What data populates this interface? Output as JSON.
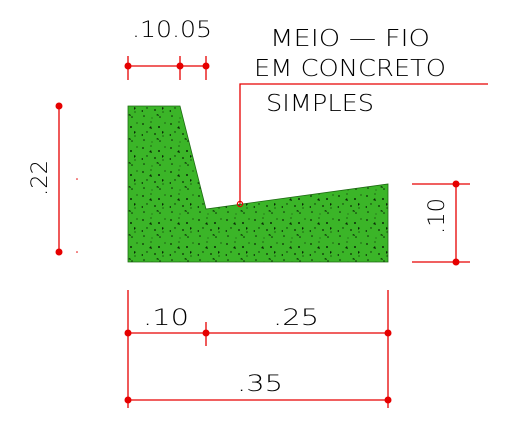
{
  "title": {
    "line1": "MEIO  —  FIO",
    "line2": "EM  CONCRETO",
    "line3": "SIMPLES"
  },
  "dimensions": {
    "top": ".10.05",
    "left_height": ".22",
    "right_height": ".10",
    "bottom_left": ".10",
    "bottom_right": ".25",
    "bottom_total": ".35"
  },
  "colors": {
    "concrete_fill": "#3bb528",
    "dimension_lines": "#e60000",
    "text": "#000000"
  }
}
